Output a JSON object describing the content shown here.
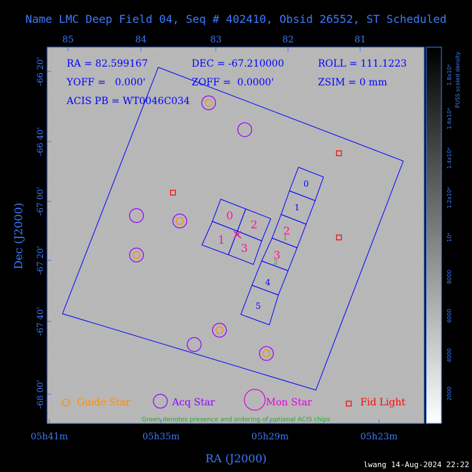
{
  "title": "Name LMC Deep Field 04, Seq # 402410, Obsid 26552, ST Scheduled",
  "footer": "lwang 14-Aug-2024 22:22",
  "chart_data": {
    "type": "scatter",
    "xlabel": "RA (J2000)",
    "ylabel": "Dec (J2000)",
    "colorbar_label": "PUSS scaled density",
    "top_ticks": [
      "85",
      "84",
      "83",
      "82",
      "81"
    ],
    "bottom_ticks": [
      "05h41m",
      "05h35m",
      "05h29m",
      "05h23m"
    ],
    "left_ticks": [
      "-66 20'",
      "-66 40'",
      "-67 00'",
      "-67 20'",
      "-67 40'",
      "-68 00'"
    ],
    "colorbar_ticks": [
      "2000",
      "4000",
      "6000",
      "8000",
      "10⁴",
      "1.2x10⁴",
      "1.4x10⁴",
      "1.6x10⁴",
      "1.8x10⁴"
    ],
    "info": {
      "ra": "RA = 82.599167",
      "dec": "DEC = -67.210000",
      "roll": "ROLL = 111.1223",
      "yoff": "YOFF =   0.000'",
      "zoff": "ZOFF =  0.0000'",
      "zsim": "ZSIM = 0 mm",
      "aperture": "ACIS PB = WT0046C034"
    },
    "legend": [
      {
        "label": "Guide Star",
        "color": "#ff8c00"
      },
      {
        "label": "Acq Star",
        "color": "#9400ff"
      },
      {
        "label": "Mon Star",
        "color": "#e000e0"
      },
      {
        "label": "Fid Light",
        "color": "#ff0000"
      }
    ],
    "note": "Green denotes presence and ordering of optional ACIS chips",
    "chip_labels_i": [
      "0",
      "1",
      "2",
      "3"
    ],
    "chip_labels_s": [
      "0",
      "1",
      "2",
      "3",
      "4",
      "5"
    ],
    "optional_order": [
      "1",
      "2"
    ],
    "guide_stars": [
      [
        -66.45,
        83.1
      ],
      [
        -67.11,
        83.5
      ],
      [
        -67.3,
        84.1
      ],
      [
        -67.72,
        82.95
      ],
      [
        -67.85,
        82.3
      ]
    ],
    "acq_stars": [
      [
        -66.6,
        82.6
      ],
      [
        -67.08,
        84.1
      ],
      [
        -67.8,
        83.3
      ]
    ],
    "fid_lights": [
      [
        -66.73,
        81.3
      ],
      [
        -66.95,
        83.6
      ],
      [
        -67.2,
        81.3
      ]
    ],
    "colors": {
      "frame": "#3b7bff",
      "field": "#0000ff",
      "imaging_chips": "#ff1493",
      "spectro_chips": "#0000ff",
      "optional": "#22aa22",
      "aimpoint": "#ff1493"
    }
  }
}
